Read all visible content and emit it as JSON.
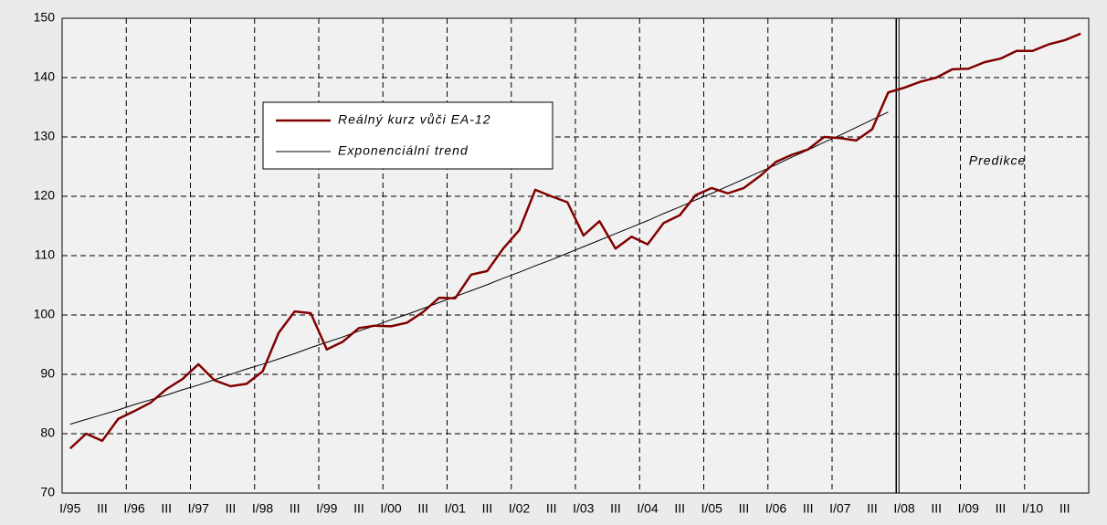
{
  "chart_data": {
    "type": "line",
    "categories": [
      "I/95",
      null,
      "III",
      null,
      "I/96",
      null,
      "III",
      null,
      "I/97",
      null,
      "III",
      null,
      "I/98",
      null,
      "III",
      null,
      "I/99",
      null,
      "III",
      null,
      "I/00",
      null,
      "III",
      null,
      "I/01",
      null,
      "III",
      null,
      "I/02",
      null,
      "III",
      null,
      "I/03",
      null,
      "III",
      null,
      "I/04",
      null,
      "III",
      null,
      "I/05",
      null,
      "III",
      null,
      "I/06",
      null,
      "III",
      null,
      "I/07",
      null,
      "III",
      null,
      "I/08",
      null,
      "III",
      null,
      "I/09",
      null,
      "III",
      null,
      "I/10",
      null,
      "III",
      null
    ],
    "series": [
      {
        "name": "Reálný kurz vůči EA-12",
        "color": "#800000",
        "values": [
          77.5,
          80,
          78.8,
          82.5,
          83.8,
          85.2,
          87.5,
          89.2,
          91.7,
          89,
          88,
          88.4,
          90.5,
          97,
          100.6,
          100.3,
          94.2,
          95.5,
          97.8,
          98.2,
          98.1,
          98.7,
          100.5,
          102.9,
          102.8,
          106.8,
          107.4,
          111.2,
          114.3,
          121.1,
          120,
          119,
          113.4,
          115.8,
          111.2,
          113.2,
          111.9,
          115.5,
          116.8,
          120.2,
          121.4,
          120.5,
          121.4,
          123.4,
          125.8,
          127,
          127.9,
          130,
          129.8,
          129.4,
          131.3,
          137.5,
          138.3,
          139.3,
          140,
          141.4,
          141.5,
          142.6,
          143.2,
          144.5,
          144.5,
          145.6,
          146.3,
          147.4
        ]
      },
      {
        "name": "Exponenciální trend",
        "color": "#000000",
        "values": [
          81.6,
          82.4,
          83.2,
          84.0,
          84.9,
          85.7,
          86.5,
          87.4,
          88.2,
          89.1,
          90.0,
          90.9,
          91.7,
          92.6,
          93.5,
          94.5,
          95.4,
          96.3,
          97.3,
          98.2,
          99.2,
          100.1,
          101.1,
          102.1,
          103.1,
          104.1,
          105.1,
          106.2,
          107.2,
          108.3,
          109.3,
          110.4,
          111.5,
          112.6,
          113.7,
          114.8,
          115.9,
          117.1,
          118.2,
          119.4,
          120.5,
          121.7,
          122.9,
          124.1,
          125.3,
          126.6,
          127.8,
          129.1,
          130.3,
          131.6,
          132.9,
          134.2,
          null,
          null,
          null,
          null,
          null,
          null,
          null,
          null,
          null,
          null,
          null,
          null
        ]
      }
    ],
    "annotation": "Predikce",
    "ylim": [
      70,
      150
    ],
    "yticks": [
      70,
      80,
      90,
      100,
      110,
      120,
      130,
      140,
      150
    ],
    "grid": true
  }
}
